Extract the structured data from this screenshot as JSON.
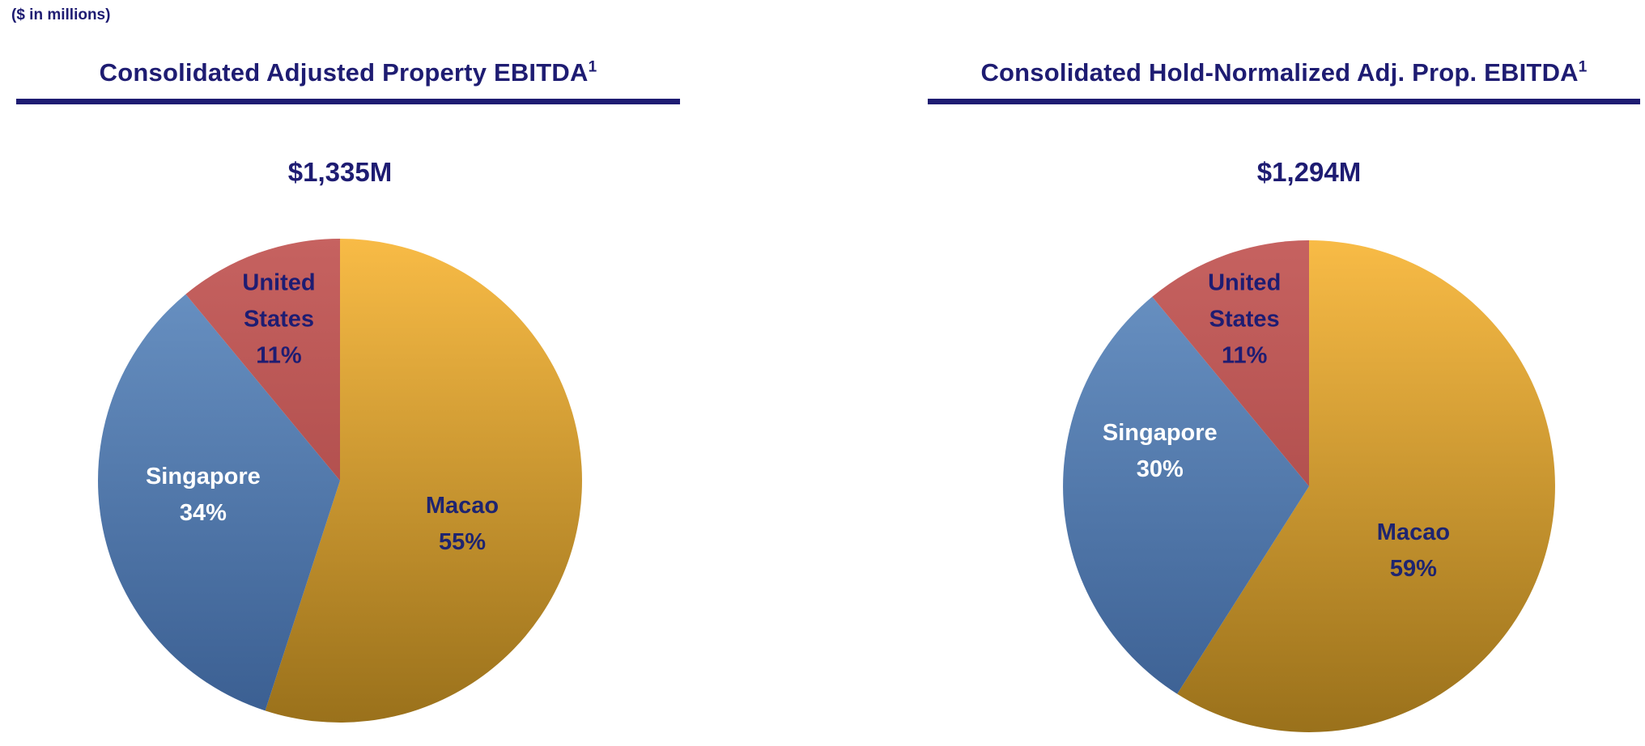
{
  "note": "($ in millions)",
  "colors": {
    "navy": "#1E1C72",
    "background": "#FFFFFF"
  },
  "chart_data": [
    {
      "type": "pie",
      "title": "Consolidated Adjusted Property EBITDA",
      "title_superscript": "1",
      "total_label": "$1,335M",
      "start_angle_deg": 0,
      "direction": "clockwise",
      "legend": "none",
      "labels_position": "inside",
      "slices": [
        {
          "label": "Macao",
          "pct": 55,
          "display": "55%",
          "color_top": "#F8BB46",
          "color_bottom": "#9A711B",
          "label_color": "#1E2470",
          "label_pos": {
            "x_pct": 75,
            "y_pct": 59
          }
        },
        {
          "label": "Singapore",
          "pct": 34,
          "display": "34%",
          "color_top": "#6C95C6",
          "color_bottom": "#3A5E91",
          "label_color": "#FFFFFF",
          "label_pos": {
            "x_pct": 22,
            "y_pct": 53
          }
        },
        {
          "label": "United States",
          "pct": 11,
          "display": "11%",
          "color_top": "#C66260",
          "color_bottom": "#A03F3E",
          "label_color": "#1E1C72",
          "label_pos": {
            "x_pct": 37.5,
            "y_pct": 17
          }
        }
      ]
    },
    {
      "type": "pie",
      "title": "Consolidated Hold-Normalized Adj. Prop. EBITDA",
      "title_superscript": "1",
      "total_label": "$1,294M",
      "start_angle_deg": 0,
      "direction": "clockwise",
      "legend": "none",
      "labels_position": "inside",
      "slices": [
        {
          "label": "Macao",
          "pct": 59,
          "display": "59%",
          "color_top": "#F8BB46",
          "color_bottom": "#9A711B",
          "label_color": "#1E2470",
          "label_pos": {
            "x_pct": 71,
            "y_pct": 63
          }
        },
        {
          "label": "Singapore",
          "pct": 30,
          "display": "30%",
          "color_top": "#6C95C6",
          "color_bottom": "#3A5E91",
          "label_color": "#FFFFFF",
          "label_pos": {
            "x_pct": 20,
            "y_pct": 43
          }
        },
        {
          "label": "United States",
          "pct": 11,
          "display": "11%",
          "color_top": "#C66260",
          "color_bottom": "#A03F3E",
          "label_color": "#1E1C72",
          "label_pos": {
            "x_pct": 37,
            "y_pct": 16.5
          }
        }
      ]
    }
  ]
}
